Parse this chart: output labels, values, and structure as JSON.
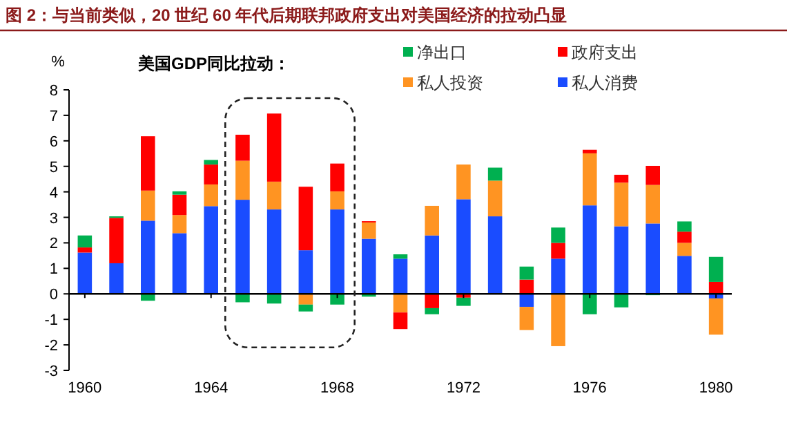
{
  "chart_data": {
    "type": "bar",
    "stacked": true,
    "title": "图 2：与当前类似，20 世纪 60 年代后期联邦政府支出对美国经济的拉动凸显",
    "subtitle": "美国GDP同比拉动：",
    "ylabel": "%",
    "categories": [
      "1960",
      null,
      null,
      null,
      "1964",
      null,
      null,
      null,
      "1968",
      null,
      null,
      null,
      "1972",
      null,
      null,
      null,
      "1976",
      null,
      null,
      null,
      "1980"
    ],
    "series": [
      {
        "name": "私人消费",
        "color": "#1a4cff",
        "values": [
          1.62,
          1.2,
          2.87,
          2.38,
          3.44,
          3.69,
          3.31,
          1.71,
          3.31,
          2.16,
          1.38,
          2.29,
          3.71,
          3.04,
          -0.51,
          1.38,
          3.47,
          2.65,
          2.76,
          1.49,
          -0.18
        ]
      },
      {
        "name": "私人投资",
        "color": "#ff9422",
        "values": [
          0,
          0,
          1.18,
          0.71,
          0.85,
          1.53,
          1.09,
          -0.42,
          0.71,
          0.64,
          -0.73,
          1.16,
          1.36,
          1.4,
          -0.91,
          -2.05,
          2.04,
          1.71,
          1.51,
          0.51,
          -1.42
        ]
      },
      {
        "name": "政府支出",
        "color": "#ff0000",
        "values": [
          0.2,
          1.78,
          2.13,
          0.8,
          0.78,
          1.02,
          2.67,
          2.49,
          1.09,
          0.05,
          -0.65,
          -0.56,
          -0.15,
          null,
          0.56,
          0.62,
          0.14,
          0.31,
          0.75,
          0.44,
          0.47
        ]
      },
      {
        "name": "净出口",
        "color": "#00b050",
        "values": [
          0.47,
          0.06,
          -0.27,
          0.13,
          0.18,
          -0.33,
          -0.38,
          -0.27,
          -0.42,
          -0.11,
          0.17,
          -0.24,
          -0.32,
          0.51,
          0.51,
          0.6,
          -0.8,
          -0.53,
          -0.05,
          0.4,
          0.98
        ]
      }
    ],
    "ylim": [
      -3,
      8
    ],
    "yticks": [
      -3,
      -2,
      -1,
      0,
      1,
      2,
      3,
      4,
      5,
      6,
      7,
      8
    ],
    "legend": "top right"
  }
}
